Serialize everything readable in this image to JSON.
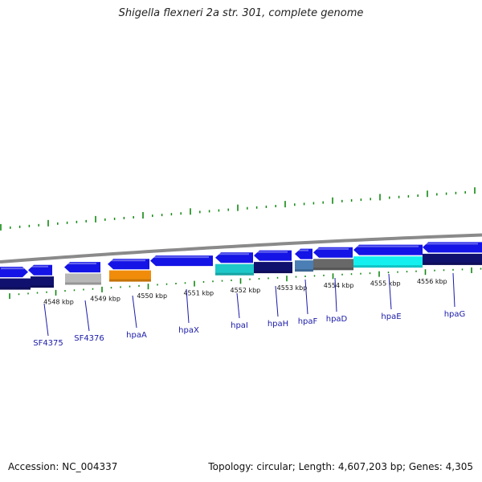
{
  "title": "Shigella flexneri 2a str. 301, complete genome",
  "footer": {
    "accession": "Accession: NC_004337",
    "summary": "Topology: circular; Length: 4,607,203 bp; Genes: 4,305"
  },
  "kbp_labels": [
    "4548 kbp",
    "4549 kbp",
    "4550 kbp",
    "4551 kbp",
    "4552 kbp",
    "4553 kbp",
    "4554 kbp",
    "4555 kbp",
    "4556 kbp"
  ],
  "gene_labels": [
    "SF4375",
    "SF4376",
    "hpaA",
    "hpaX",
    "hpaI",
    "hpaH",
    "hpaF",
    "hpaD",
    "hpaE",
    "hpaG"
  ],
  "colors": {
    "forward": "#1414e6",
    "dark": "#10106e",
    "gray": "#b8b8b8",
    "orange": "#f08c0a",
    "teal": "#1ec8c8",
    "steel": "#4a7eb4",
    "darkgray": "#686868",
    "cyan": "#14f0f0",
    "backbone": "#8a8a8a",
    "tick": "#118811",
    "label": "#1a1aa8"
  }
}
